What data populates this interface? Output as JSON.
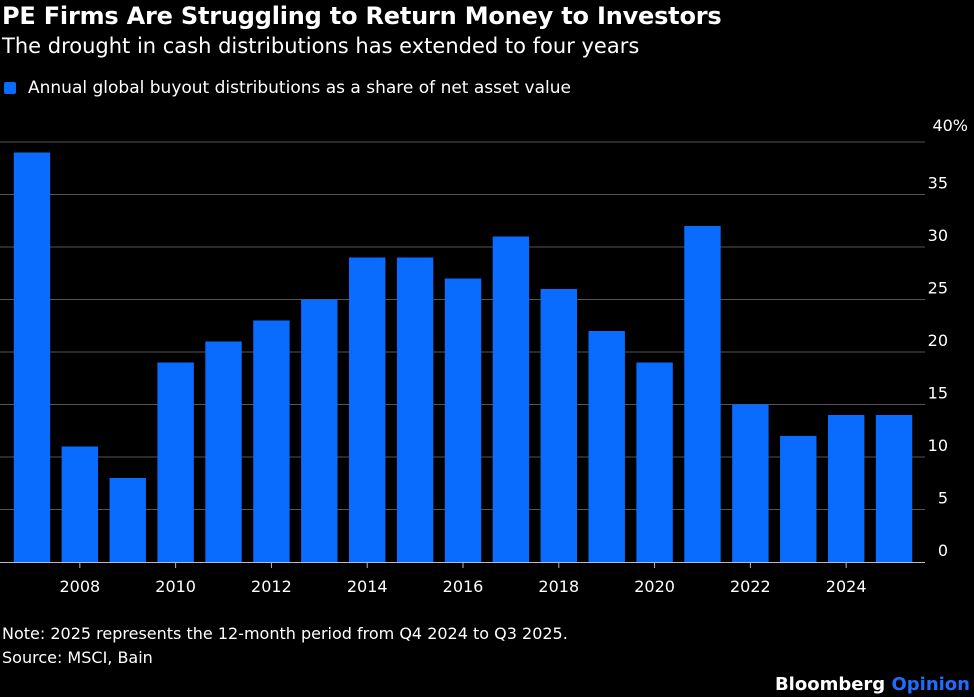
{
  "header": {
    "title": "PE Firms Are Struggling to Return Money to Investors",
    "subtitle": "The drought in cash distributions has extended to four years"
  },
  "legend": {
    "label": "Annual global buyout distributions as a share of net asset value",
    "color": "#0a6cff"
  },
  "footer": {
    "note": "Note: 2025 represents the 12-month period from Q4 2024 to Q3 2025.",
    "source": "Source: MSCI, Bain",
    "brand": "Bloomberg",
    "brand_suffix": "Opinion"
  },
  "chart_data": {
    "type": "bar",
    "categories": [
      2007,
      2008,
      2009,
      2010,
      2011,
      2012,
      2013,
      2014,
      2015,
      2016,
      2017,
      2018,
      2019,
      2020,
      2021,
      2022,
      2023,
      2024,
      2025
    ],
    "values": [
      39,
      11,
      8,
      19,
      21,
      23,
      25,
      29,
      29,
      27,
      31,
      26,
      22,
      19,
      32,
      15,
      12,
      14,
      14
    ],
    "xticks": [
      "2008",
      "2010",
      "2012",
      "2014",
      "2016",
      "2018",
      "2020",
      "2022",
      "2024"
    ],
    "yticks": [
      "0",
      "5",
      "10",
      "15",
      "20",
      "25",
      "30",
      "35",
      "40%"
    ],
    "ylim": [
      0,
      40
    ],
    "grid": true,
    "bar_color": "#0a6cff",
    "grid_color": "#555555",
    "axis_side": "right"
  }
}
